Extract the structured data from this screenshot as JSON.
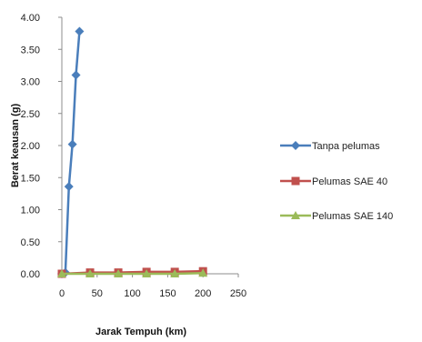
{
  "chart_data": {
    "type": "line",
    "title": "",
    "xlabel": "Jarak Tempuh (km)",
    "ylabel": "Berat keausan (g)",
    "xlim": [
      0,
      250
    ],
    "ylim": [
      0,
      4
    ],
    "x_ticks": [
      "0",
      "50",
      "100",
      "150",
      "200",
      "250"
    ],
    "y_ticks": [
      "0.00",
      "0.50",
      "1.00",
      "1.50",
      "2.00",
      "2.50",
      "3.00",
      "3.50",
      "4.00"
    ],
    "grid": false,
    "legend_position": "right",
    "series": [
      {
        "name": "Tanpa pelumas",
        "color": "#4a7ebb",
        "marker": "diamond",
        "x": [
          0,
          5,
          10,
          15,
          20,
          25
        ],
        "y": [
          0.0,
          0.02,
          1.36,
          2.02,
          3.1,
          3.78
        ]
      },
      {
        "name": "Pelumas SAE 40",
        "color": "#c0504d",
        "marker": "square",
        "x": [
          0,
          40,
          80,
          120,
          160,
          200
        ],
        "y": [
          0.0,
          0.02,
          0.02,
          0.03,
          0.03,
          0.04
        ]
      },
      {
        "name": "Pelumas SAE 140",
        "color": "#9bbb59",
        "marker": "triangle",
        "x": [
          0,
          40,
          80,
          120,
          160,
          200
        ],
        "y": [
          0.0,
          0.0,
          0.0,
          0.0,
          0.0,
          0.01
        ]
      }
    ]
  }
}
